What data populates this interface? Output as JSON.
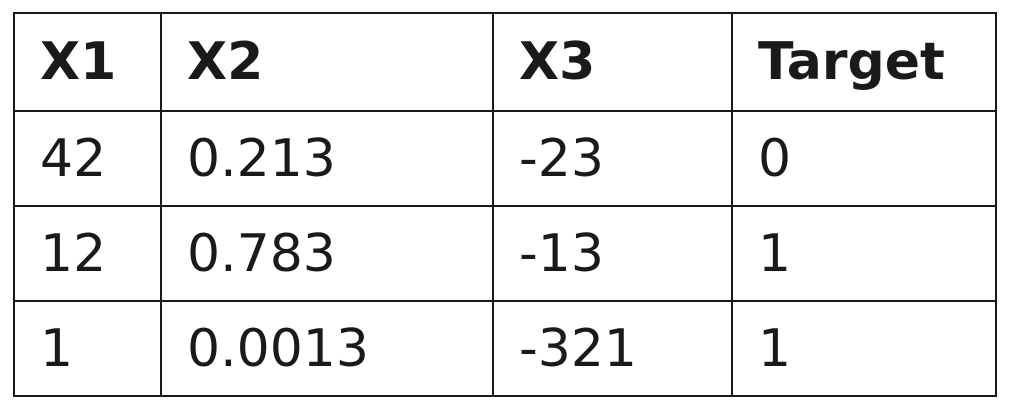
{
  "table": {
    "headers": [
      "X1",
      "X2",
      "X3",
      "Target"
    ],
    "rows": [
      [
        "42",
        "0.213",
        "-23",
        "0"
      ],
      [
        "12",
        "0.783",
        "-13",
        "1"
      ],
      [
        "1",
        "0.0013",
        "-321",
        "1"
      ]
    ]
  }
}
